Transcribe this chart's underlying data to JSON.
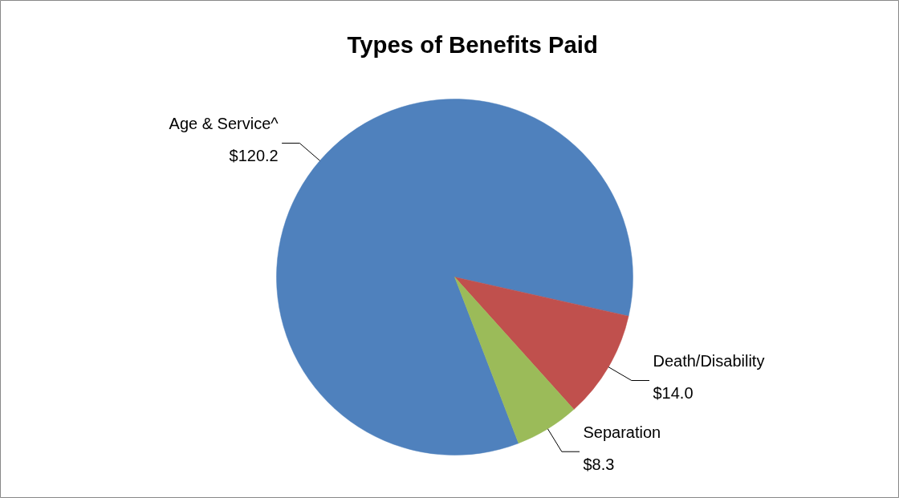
{
  "chart_data": {
    "type": "pie",
    "title": "Types of Benefits Paid",
    "categories": [
      "Age & Service^",
      "Death/Disability",
      "Separation"
    ],
    "values": [
      120.2,
      14.0,
      8.3
    ],
    "value_labels": [
      "$120.2",
      "$14.0",
      "$8.3"
    ],
    "colors": [
      "#4f81bd",
      "#c0504d",
      "#9bbb59"
    ]
  }
}
